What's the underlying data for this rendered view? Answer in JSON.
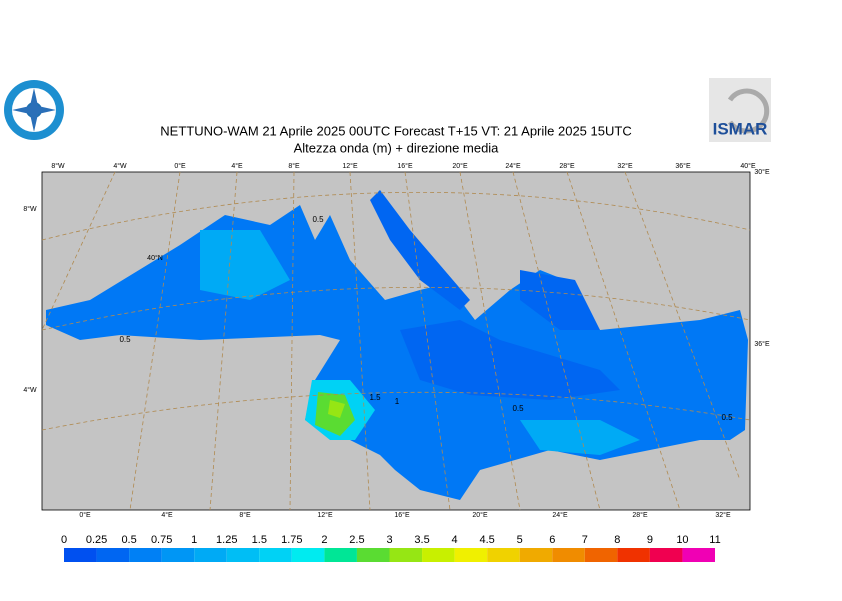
{
  "header": {
    "title": "NETTUNO-WAM  21   Aprile  2025 00UTC Forecast T+15 VT: 21   Aprile  2025 15UTC",
    "subtitle": "Altezza onda (m) + direzione media",
    "logo_right": "ISMAR"
  },
  "map": {
    "top_lon_labels": [
      "8°W",
      "4°W",
      "0°E",
      "4°E",
      "8°E",
      "12°E",
      "16°E",
      "20°E",
      "24°E",
      "28°E",
      "32°E",
      "36°E",
      "40°E"
    ],
    "bottom_lon_labels": [
      "0°E",
      "4°E",
      "8°E",
      "12°E",
      "16°E",
      "20°E",
      "24°E",
      "28°E",
      "32°E"
    ],
    "left_labels": [
      "8°W",
      "40°N",
      "4°W"
    ],
    "right_labels": [
      "30°E",
      "36°E"
    ],
    "contour_labels": [
      "0.5",
      "0.5",
      "1.5",
      "1",
      "0.5",
      "0.5"
    ]
  },
  "legend": {
    "labels": [
      "0",
      "0.25",
      "0.5",
      "0.75",
      "1",
      "1.25",
      "1.5",
      "1.75",
      "2",
      "2.5",
      "3",
      "3.5",
      "4",
      "4.5",
      "5",
      "6",
      "7",
      "8",
      "9",
      "10",
      "11"
    ],
    "colors": [
      "#0050f0",
      "#0066f2",
      "#0080f5",
      "#0096f5",
      "#00aaf5",
      "#00bef5",
      "#00d2f5",
      "#00ebf0",
      "#00e696",
      "#5adc32",
      "#96e614",
      "#c8f000",
      "#f0f000",
      "#f0d200",
      "#f0aa00",
      "#f08c00",
      "#f06400",
      "#f03200",
      "#f00050",
      "#f000b4"
    ]
  }
}
